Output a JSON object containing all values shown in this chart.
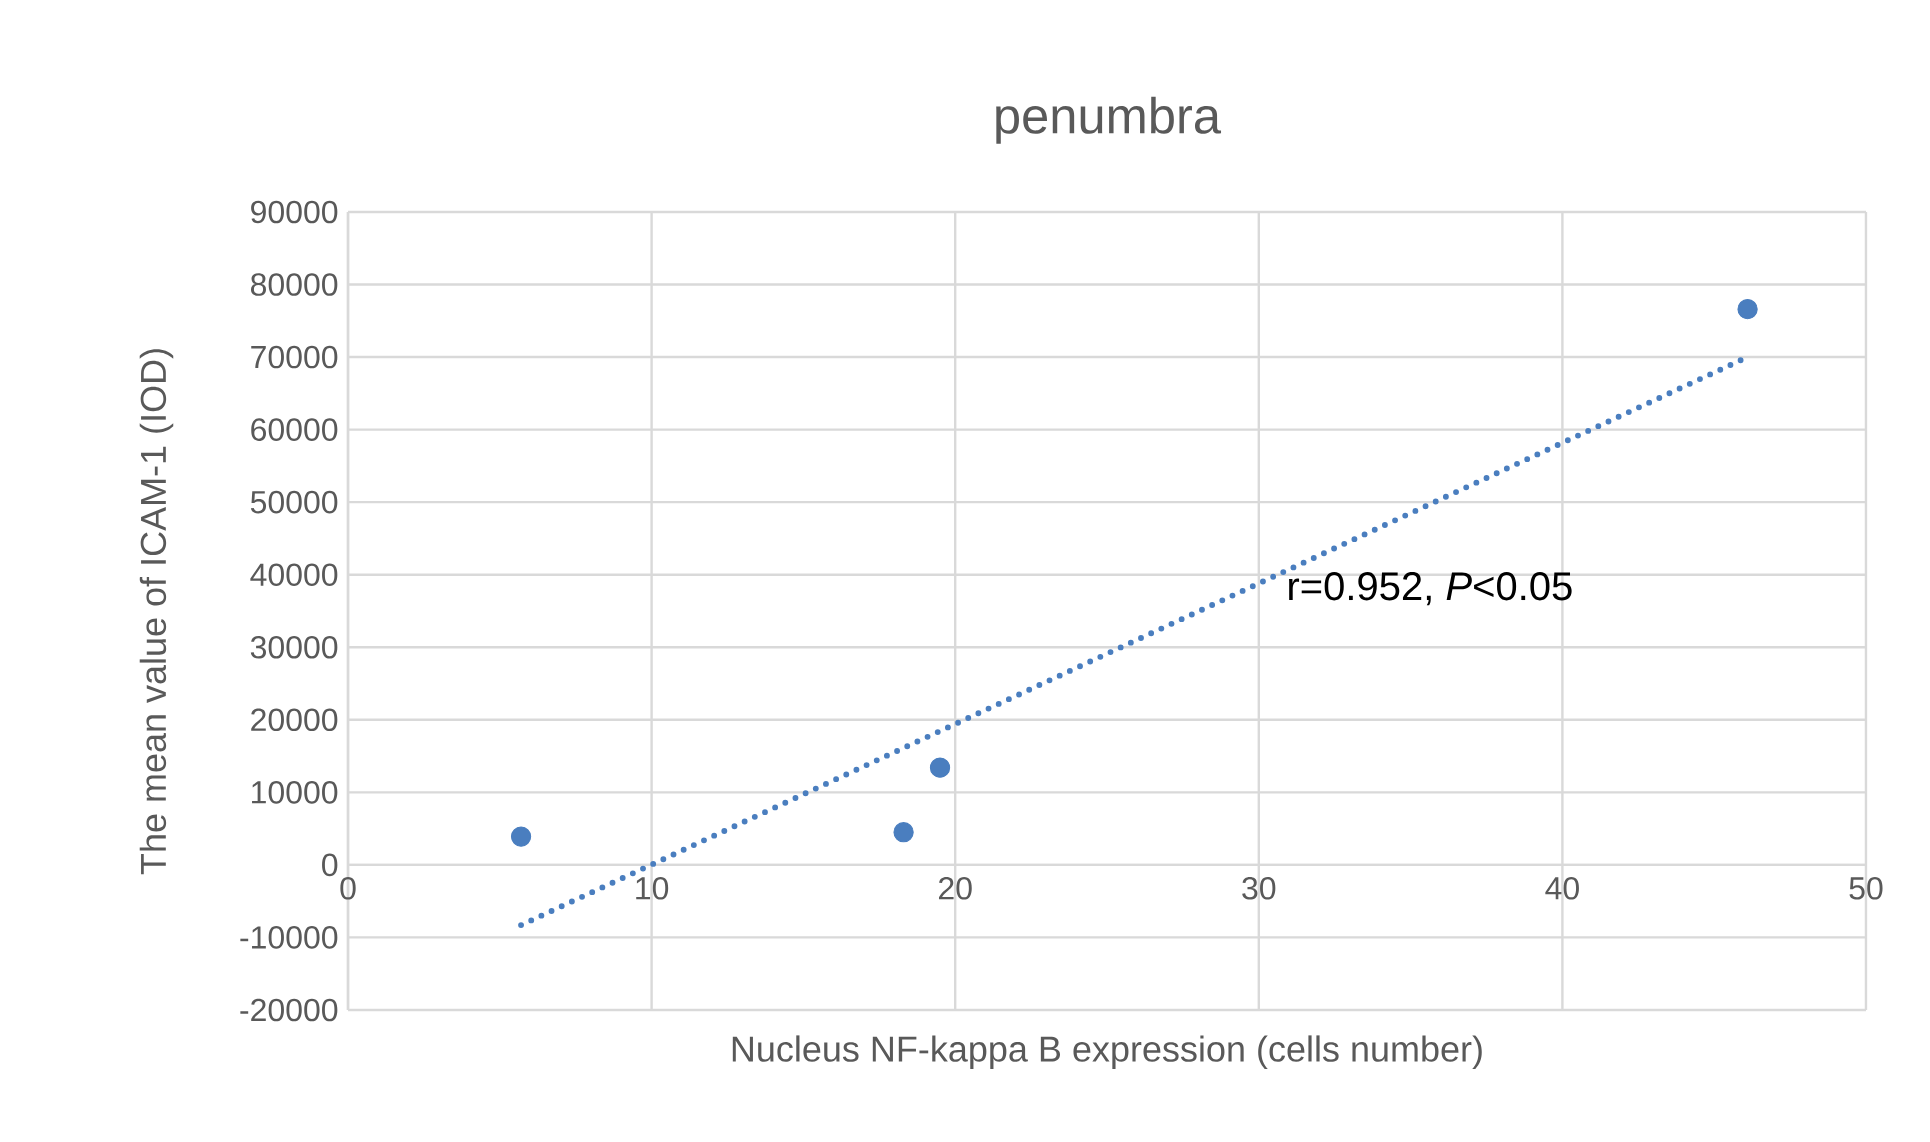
{
  "chart_data": {
    "type": "scatter",
    "title": "penumbra",
    "xlabel": "Nucleus NF-kappa B expression (cells number)",
    "ylabel": "The mean value of ICAM-1 (IOD)",
    "xlim": [
      0,
      50
    ],
    "ylim": [
      -20000,
      90000
    ],
    "xticks": [
      0,
      10,
      20,
      30,
      40,
      50
    ],
    "yticks": [
      -20000,
      -10000,
      0,
      10000,
      20000,
      30000,
      40000,
      50000,
      60000,
      70000,
      80000,
      90000
    ],
    "grid": true,
    "marker": "circle",
    "legend": false,
    "series": [
      {
        "color": "#4a7ebf",
        "x": [
          5.7,
          18.3,
          19.5,
          46.1
        ],
        "values": [
          3900,
          4500,
          13400,
          76600
        ]
      },
      {
        "type": "line",
        "color": "#4a7ebf",
        "line_style": "dotted",
        "marker": "none",
        "x": [
          5.7,
          46.1
        ],
        "values": [
          -8300,
          70000
        ]
      }
    ],
    "annotations": [
      "r=0.952, *P*<0.05"
    ]
  }
}
